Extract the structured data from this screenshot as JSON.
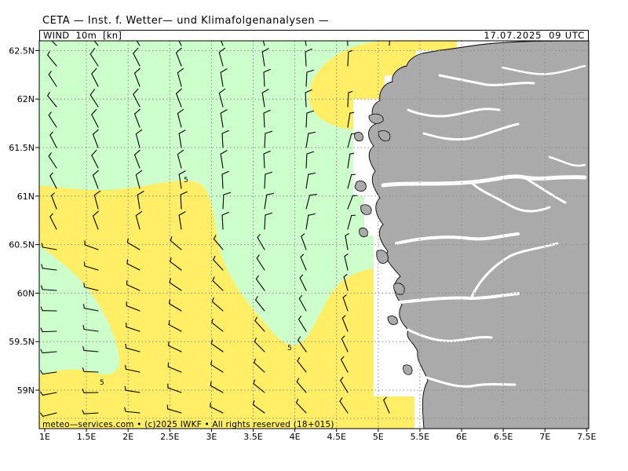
{
  "header": {
    "title": "CETA — Inst. f. Wetter— und Klimafolgenanalysen —"
  },
  "info_bar": {
    "parameter": "WIND  10m  [kn]",
    "valid_time": "17.07.2025  09 UTC"
  },
  "axes": {
    "x_ticks": [
      "1E",
      "1.5E",
      "2E",
      "2.5E",
      "3E",
      "3.5E",
      "4E",
      "4.5E",
      "5E",
      "5.5E",
      "6E",
      "6.5E",
      "7E",
      "7.5E"
    ],
    "y_ticks": [
      "62.5N",
      "62N",
      "61.5N",
      "61N",
      "60.5N",
      "60N",
      "59.5N",
      "59N"
    ],
    "lon_range": [
      1.0,
      7.5
    ],
    "lat_range": [
      58.6,
      62.7
    ]
  },
  "legend": {
    "fill_colors": {
      "below_5kn": "#ccffcc",
      "above_5kn": "#ffee66",
      "land": "#aaaaaa",
      "no_data": "#ffffff"
    }
  },
  "contour_labels": [
    "5",
    "5",
    "5"
  ],
  "wind_barb_color": "#000000",
  "copyright": "meteo—services.com  •  (c)2025  IWKF  •  All  rights  reserved  (18+015)"
}
